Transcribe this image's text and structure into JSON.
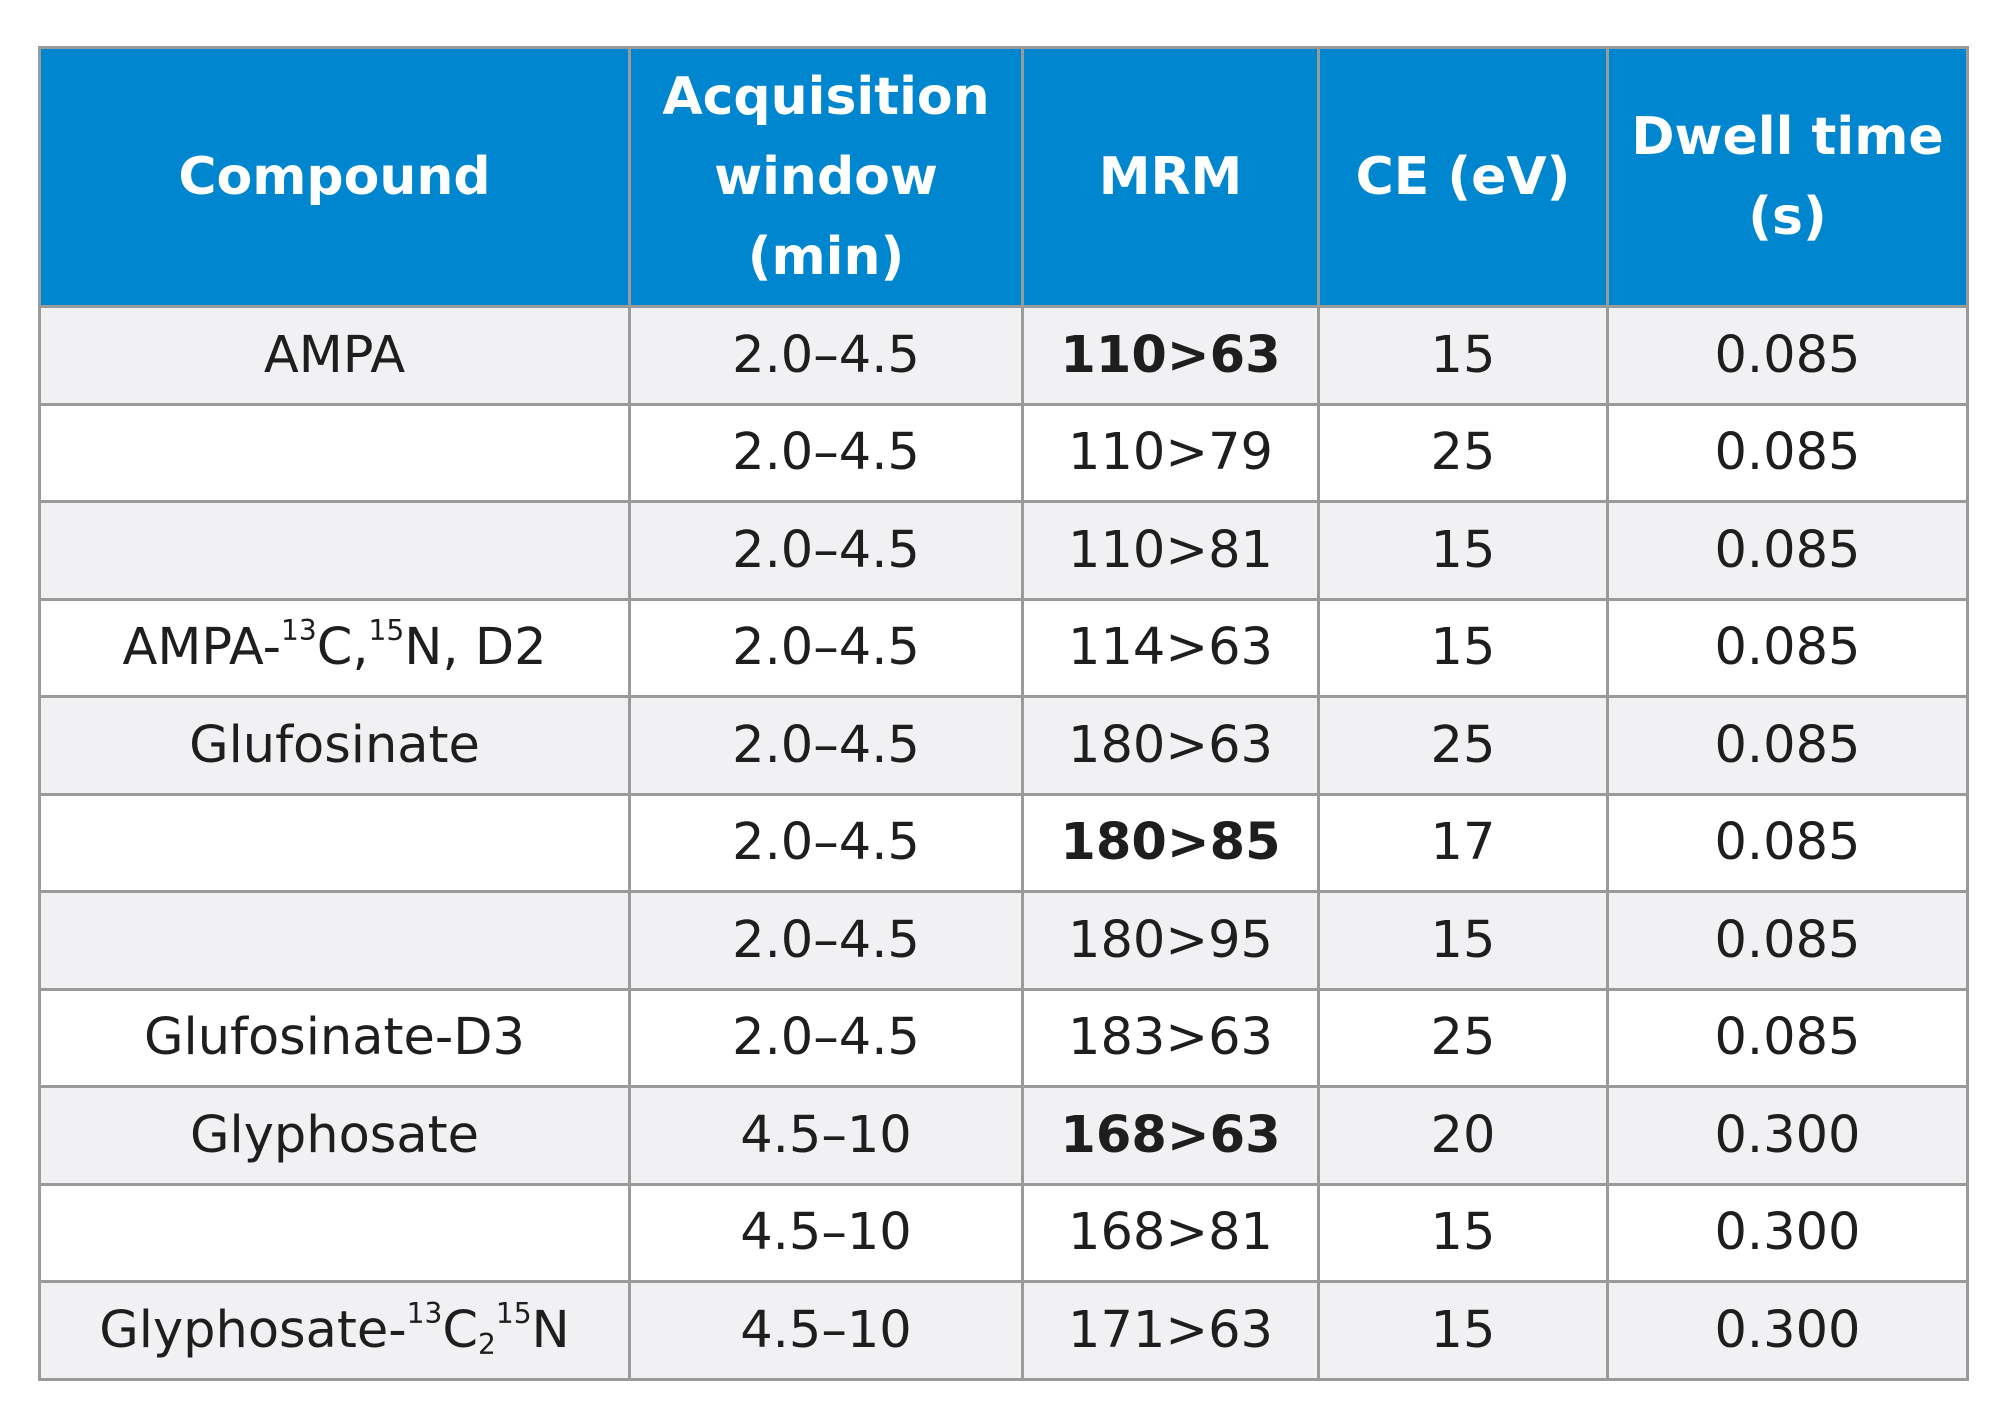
{
  "header": {
    "compound": "Compound",
    "acquisition": [
      "Acquisition",
      "window",
      "(min)"
    ],
    "mrm": "MRM",
    "ce": "CE (eV)",
    "dwell": [
      "Dwell time",
      "(s)"
    ]
  },
  "colors": {
    "header_bg": "#0086cf",
    "row_shade": "#f1f1f3",
    "border": "#9a9a9a"
  },
  "rows": [
    {
      "compound": "AMPA",
      "window": "2.0–4.5",
      "mrm": "110>63",
      "mrm_bold": true,
      "ce": "15",
      "dwell": "0.085"
    },
    {
      "compound": "",
      "window": "2.0–4.5",
      "mrm": "110>79",
      "mrm_bold": false,
      "ce": "25",
      "dwell": "0.085"
    },
    {
      "compound": "",
      "window": "2.0–4.5",
      "mrm": "110>81",
      "mrm_bold": false,
      "ce": "15",
      "dwell": "0.085"
    },
    {
      "compound": "AMPA-13C,15N, D2",
      "compound_parts": [
        "AMPA-",
        "13",
        "C,",
        "15",
        "N, D2"
      ],
      "window": "2.0–4.5",
      "mrm": "114>63",
      "mrm_bold": false,
      "ce": "15",
      "dwell": "0.085"
    },
    {
      "compound": "Glufosinate",
      "window": "2.0–4.5",
      "mrm": "180>63",
      "mrm_bold": false,
      "ce": "25",
      "dwell": "0.085"
    },
    {
      "compound": "",
      "window": "2.0–4.5",
      "mrm": "180>85",
      "mrm_bold": true,
      "ce": "17",
      "dwell": "0.085"
    },
    {
      "compound": "",
      "window": "2.0–4.5",
      "mrm": "180>95",
      "mrm_bold": false,
      "ce": "15",
      "dwell": "0.085"
    },
    {
      "compound": "Glufosinate-D3",
      "window": "2.0–4.5",
      "mrm": "183>63",
      "mrm_bold": false,
      "ce": "25",
      "dwell": "0.085"
    },
    {
      "compound": "Glyphosate",
      "window": "4.5–10",
      "mrm": "168>63",
      "mrm_bold": true,
      "ce": "20",
      "dwell": "0.300"
    },
    {
      "compound": "",
      "window": "4.5–10",
      "mrm": "168>81",
      "mrm_bold": false,
      "ce": "15",
      "dwell": "0.300"
    },
    {
      "compound": "Glyphosate-13C215N",
      "compound_parts": [
        "Glyphosate-",
        "13",
        "C",
        "2",
        "15",
        "N"
      ],
      "window": "4.5–10",
      "mrm": "171>63",
      "mrm_bold": false,
      "ce": "15",
      "dwell": "0.300"
    }
  ]
}
